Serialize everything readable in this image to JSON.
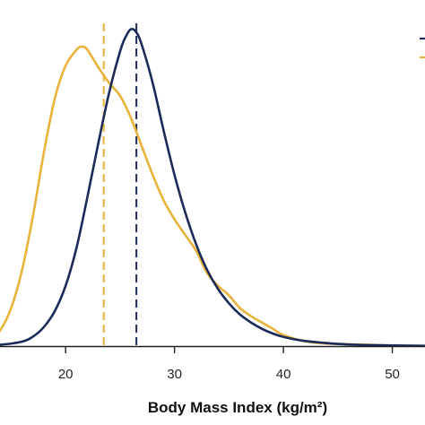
{
  "chart_data": {
    "type": "line",
    "title": "",
    "xlabel": "Body Mass Index (kg/m²)",
    "ylabel": "",
    "xlim": [
      12,
      53
    ],
    "ylim": [
      0,
      0.103
    ],
    "xticks": [
      20,
      30,
      40,
      50
    ],
    "grid": false,
    "colors": {
      "orange": "#E8B33A",
      "navy": "#1B2A59",
      "axis": "#222222"
    },
    "series": [
      {
        "color": "#E8B33A",
        "x": [
          12,
          13,
          14,
          15,
          16,
          17,
          18,
          19,
          20,
          21,
          21.5,
          22,
          23,
          24,
          25,
          26,
          27,
          28,
          29,
          30,
          31,
          32,
          33,
          34,
          35,
          36,
          37,
          38,
          39,
          40,
          42,
          44,
          46,
          48,
          49.5
        ],
        "y": [
          0.0003,
          0.0015,
          0.005,
          0.012,
          0.024,
          0.041,
          0.061,
          0.078,
          0.0885,
          0.0935,
          0.0945,
          0.0935,
          0.088,
          0.083,
          0.079,
          0.072,
          0.063,
          0.054,
          0.046,
          0.04,
          0.035,
          0.03,
          0.023,
          0.019,
          0.016,
          0.012,
          0.0095,
          0.0075,
          0.0055,
          0.0035,
          0.0015,
          0.0008,
          0.0006,
          0.0004,
          0.0002
        ]
      },
      {
        "color": "#1B2A59",
        "x": [
          12,
          14,
          16,
          17,
          18,
          19,
          20,
          21,
          22,
          23,
          24,
          25,
          25.5,
          26,
          26.5,
          27,
          28,
          29,
          30,
          31,
          32,
          33,
          34,
          35,
          36,
          37,
          38,
          39,
          40,
          42,
          45,
          48,
          53
        ],
        "y": [
          0.0001,
          0.0004,
          0.0014,
          0.003,
          0.006,
          0.011,
          0.019,
          0.031,
          0.047,
          0.064,
          0.08,
          0.093,
          0.0975,
          0.1,
          0.099,
          0.095,
          0.083,
          0.068,
          0.054,
          0.042,
          0.032,
          0.024,
          0.018,
          0.0135,
          0.01,
          0.0075,
          0.0055,
          0.004,
          0.0029,
          0.0016,
          0.0007,
          0.0003,
          0.0001
        ]
      }
    ],
    "reference_lines": [
      {
        "x": 23.5,
        "color": "#E8B33A",
        "style": "dashed"
      },
      {
        "x": 26.5,
        "color": "#1B2A59",
        "style": "dashed"
      }
    ]
  }
}
